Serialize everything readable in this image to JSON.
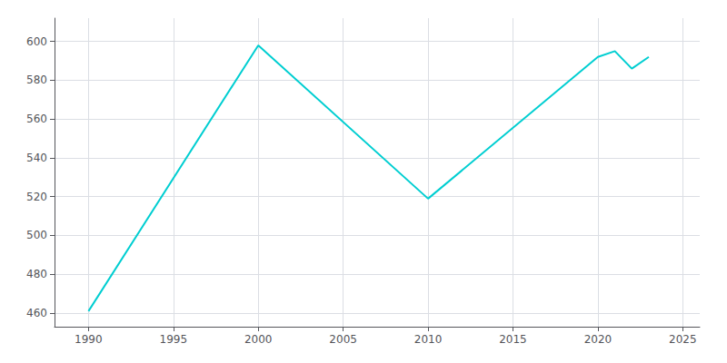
{
  "chart_data": {
    "type": "line",
    "x": [
      1990,
      2000,
      2010,
      2020,
      2021,
      2022,
      2023
    ],
    "values": [
      461,
      598,
      519,
      592,
      595,
      586,
      592
    ],
    "color": "#00CED1",
    "xlim": [
      1988,
      2026
    ],
    "ylim": [
      453,
      612
    ],
    "xticks": [
      1990,
      1995,
      2000,
      2005,
      2010,
      2015,
      2020,
      2025
    ],
    "yticks": [
      460,
      480,
      500,
      520,
      540,
      560,
      580,
      600
    ],
    "grid": true
  }
}
